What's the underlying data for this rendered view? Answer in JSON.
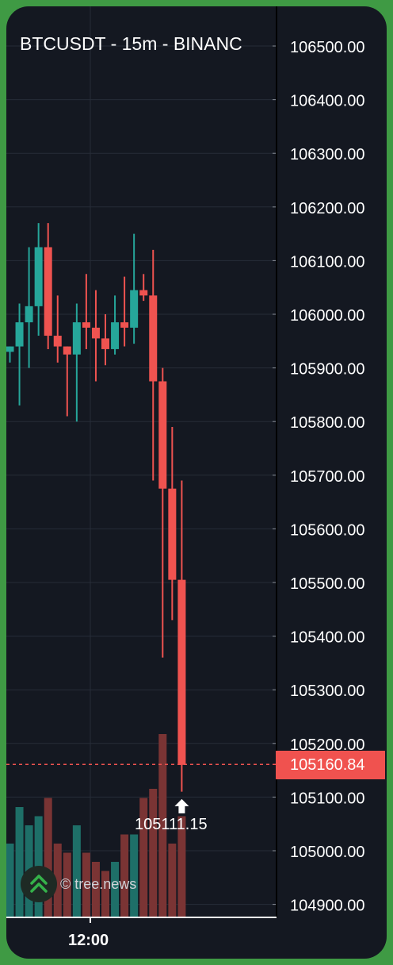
{
  "title": "BTCUSDT - 15m - BINANC",
  "current_price_label": "105160.84",
  "low_marker_label": "105111.15",
  "time_axis_label": "12:00",
  "watermark_text": "© tree.news",
  "watermark_icon": "double-chevron-up-icon",
  "colors": {
    "up": "#26a69a",
    "down": "#ef5350",
    "background": "#141821",
    "frame": "#3f9a44",
    "grid": "#262c38",
    "price_tag": "#f0524f",
    "volume_up": "#1e6f68",
    "volume_down": "#7a3434"
  },
  "chart_data": {
    "type": "candlestick",
    "title": "BTCUSDT - 15m - BINANC",
    "y_tick_labels": [
      "106500.00",
      "106400.00",
      "106300.00",
      "106200.00",
      "106100.00",
      "106000.00",
      "105900.00",
      "105800.00",
      "105700.00",
      "105600.00",
      "105500.00",
      "105400.00",
      "105300.00",
      "105200.00",
      "105100.00",
      "105000.00",
      "104900.00"
    ],
    "ylim": [
      104880,
      106560
    ],
    "x_tick_labels": [
      "12:00"
    ],
    "current_price": 105160.84,
    "low_marker": 105111.15,
    "grid": true,
    "candles": [
      {
        "o": 105930,
        "h": 105940,
        "l": 105910,
        "c": 105940,
        "vol": 0.4
      },
      {
        "o": 105940,
        "h": 106020,
        "l": 105830,
        "c": 105985,
        "vol": 0.6
      },
      {
        "o": 105985,
        "h": 106125,
        "l": 105900,
        "c": 106015,
        "vol": 0.5
      },
      {
        "o": 106015,
        "h": 106170,
        "l": 105960,
        "c": 106125,
        "vol": 0.55
      },
      {
        "o": 106125,
        "h": 106170,
        "l": 105935,
        "c": 105960,
        "vol": 0.65
      },
      {
        "o": 105960,
        "h": 106035,
        "l": 105910,
        "c": 105940,
        "vol": 0.4
      },
      {
        "o": 105940,
        "h": 105940,
        "l": 105810,
        "c": 105925,
        "vol": 0.35
      },
      {
        "o": 105925,
        "h": 106020,
        "l": 105800,
        "c": 105985,
        "vol": 0.5
      },
      {
        "o": 105985,
        "h": 106075,
        "l": 105935,
        "c": 105975,
        "vol": 0.35
      },
      {
        "o": 105975,
        "h": 106045,
        "l": 105875,
        "c": 105955,
        "vol": 0.3
      },
      {
        "o": 105955,
        "h": 106000,
        "l": 105905,
        "c": 105935,
        "vol": 0.25
      },
      {
        "o": 105935,
        "h": 106035,
        "l": 105925,
        "c": 105985,
        "vol": 0.3
      },
      {
        "o": 105985,
        "h": 106070,
        "l": 105940,
        "c": 105975,
        "vol": 0.45
      },
      {
        "o": 105975,
        "h": 106150,
        "l": 105945,
        "c": 106045,
        "vol": 0.45
      },
      {
        "o": 106045,
        "h": 106075,
        "l": 106025,
        "c": 106035,
        "vol": 0.65
      },
      {
        "o": 106035,
        "h": 106120,
        "l": 105690,
        "c": 105875,
        "vol": 0.7
      },
      {
        "o": 105875,
        "h": 105900,
        "l": 105360,
        "c": 105675,
        "vol": 1.0
      },
      {
        "o": 105675,
        "h": 105790,
        "l": 105430,
        "c": 105505,
        "vol": 0.4
      },
      {
        "o": 105505,
        "h": 105690,
        "l": 105110,
        "c": 105160,
        "vol": 0.55
      }
    ]
  }
}
